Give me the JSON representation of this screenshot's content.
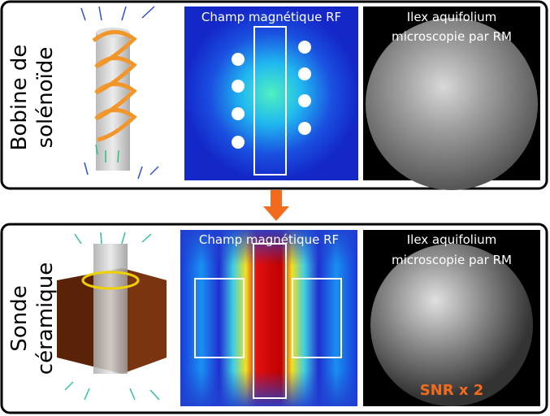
{
  "panels": [
    {
      "side_label": [
        "Bobine de",
        "solénoïde"
      ],
      "field_title": "Champ magnétique RF",
      "image_title": [
        "Ilex aquifolium",
        "microscopie par RM"
      ]
    },
    {
      "side_label": [
        "Sonde",
        "céramique"
      ],
      "field_title": "Champ magnétique RF",
      "image_title": [
        "Ilex aquifolium",
        "microscopie par RM"
      ],
      "annotation": "SNR x 2"
    }
  ]
}
